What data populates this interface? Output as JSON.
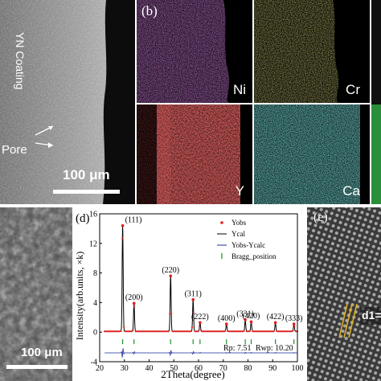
{
  "sem_top": {
    "coating_label": "YN Coating",
    "pore_label": "Pore",
    "scale_label": "100 μm"
  },
  "eds": {
    "panel_label": "(b)",
    "maps": [
      {
        "element": "Ni",
        "color": "#b63ad1"
      },
      {
        "element": "Cr",
        "color": "#c9c438"
      },
      {
        "element": "Y",
        "color": "#e32424"
      },
      {
        "element": "Ca",
        "color": "#2fb8b0"
      }
    ]
  },
  "sem_bottom": {
    "scale_label": "100 μm"
  },
  "chart_data": {
    "type": "line",
    "panel_label": "(d)",
    "xlabel": "2Theta(degree)",
    "ylabel": "Intensity(arb.units, ×k)",
    "xlim": [
      20,
      100
    ],
    "ylim": [
      -4,
      16
    ],
    "xticks": [
      20,
      30,
      40,
      50,
      60,
      70,
      80,
      90,
      100
    ],
    "yticks": [
      -4,
      0,
      4,
      8,
      12,
      16
    ],
    "legend": [
      "Yobs",
      "Ycal",
      "Yobs-Ycalc",
      "Bragg_position"
    ],
    "legend_position": "top-right",
    "peaks": [
      {
        "two_theta": 29.3,
        "intensity": 14.3,
        "hkl": "(111)"
      },
      {
        "two_theta": 33.9,
        "intensity": 3.8,
        "hkl": "(200)"
      },
      {
        "two_theta": 48.7,
        "intensity": 7.5,
        "hkl": "(220)"
      },
      {
        "two_theta": 57.8,
        "intensity": 4.3,
        "hkl": "(311)"
      },
      {
        "two_theta": 60.6,
        "intensity": 1.2,
        "hkl": "(222)"
      },
      {
        "two_theta": 71.3,
        "intensity": 1.0,
        "hkl": "(400)"
      },
      {
        "two_theta": 78.9,
        "intensity": 1.6,
        "hkl": "(331)"
      },
      {
        "two_theta": 81.3,
        "intensity": 1.3,
        "hkl": "(420)"
      },
      {
        "two_theta": 91.1,
        "intensity": 1.2,
        "hkl": "(422)"
      },
      {
        "two_theta": 98.6,
        "intensity": 1.0,
        "hkl": "(333)"
      }
    ],
    "background": 0.1,
    "bragg_offset": -1.3,
    "difference_offset": -2.8,
    "stats": {
      "rp": "Rp:  7.51",
      "rwp": "Rwp:  10.20"
    },
    "colors": {
      "yobs": "#e02020",
      "ycal": "#000000",
      "diff": "#1a2f9a",
      "bragg": "#1f8f2a"
    }
  },
  "hrtem": {
    "panel_label": "(e)",
    "d_label": "d1="
  }
}
